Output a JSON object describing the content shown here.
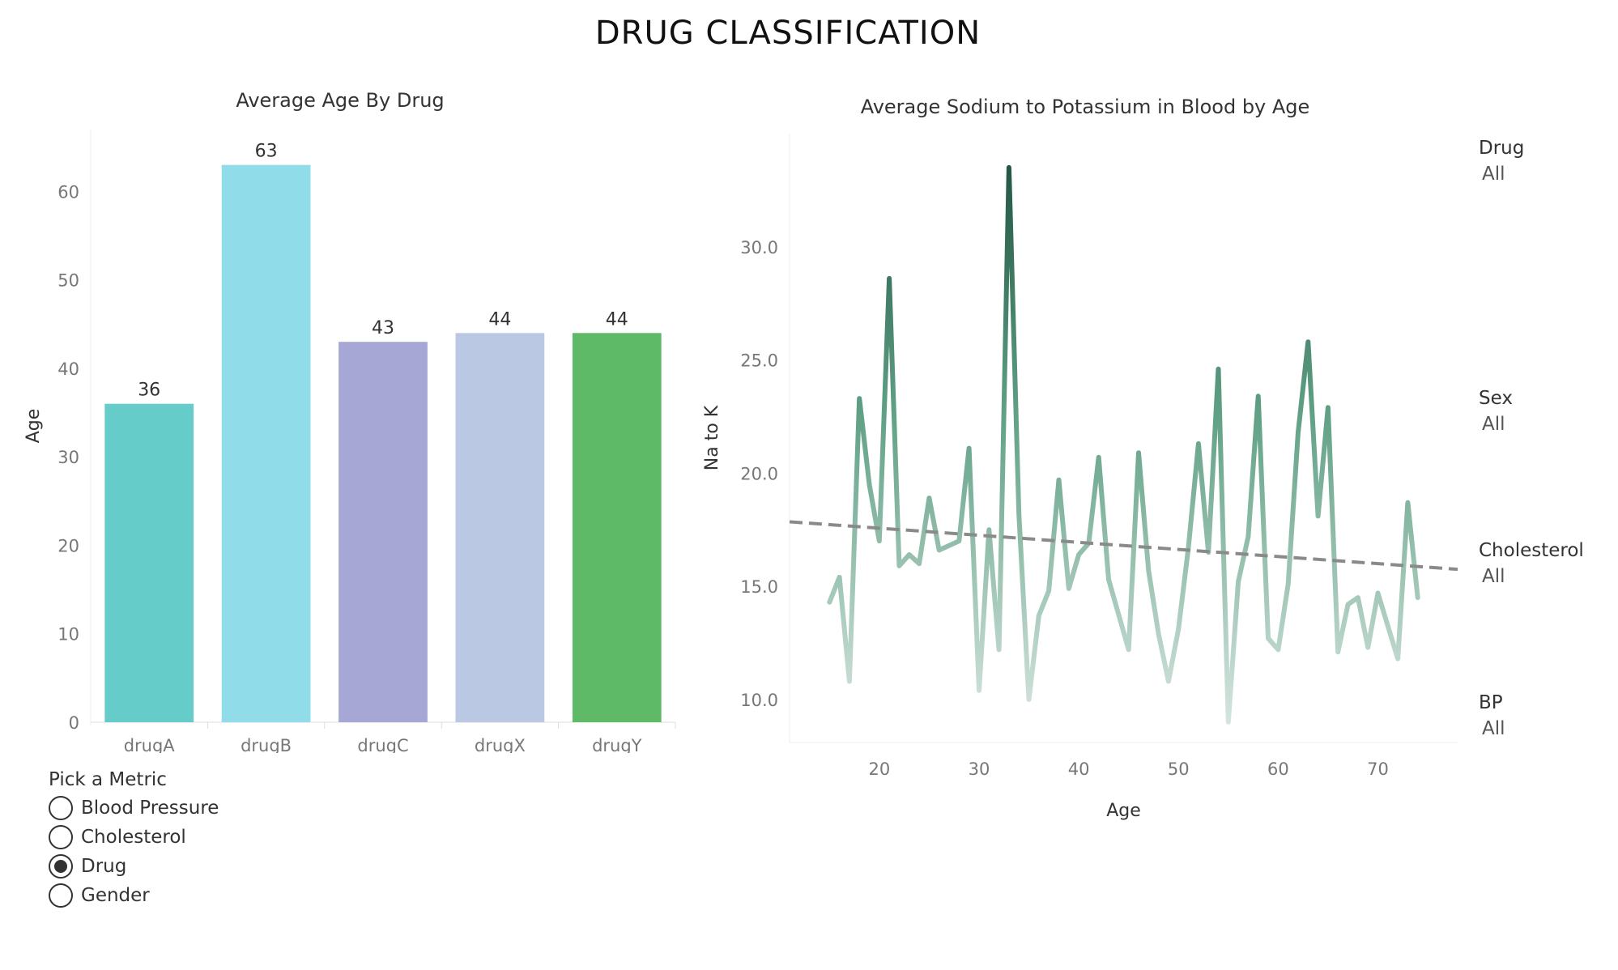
{
  "dashboard_title": "DRUG CLASSIFICATION",
  "bar_chart": {
    "title": "Average Age By Drug",
    "ylabel": "Age",
    "yticks": [
      "0",
      "10",
      "20",
      "30",
      "40",
      "50",
      "60"
    ]
  },
  "line_chart": {
    "title": "Average Sodium to Potassium in Blood by Age",
    "ylabel": "Na to K",
    "xlabel": "Age",
    "yticks": [
      "10.0",
      "15.0",
      "20.0",
      "25.0",
      "30.0"
    ],
    "xticks": [
      "20",
      "30",
      "40",
      "50",
      "60",
      "70"
    ]
  },
  "metric_picker": {
    "title": "Pick a Metric",
    "options": [
      "Blood Pressure",
      "Cholesterol",
      "Drug",
      "Gender"
    ],
    "selected": "Drug"
  },
  "filters": [
    {
      "name": "Drug",
      "value": "All"
    },
    {
      "name": "Sex",
      "value": "All"
    },
    {
      "name": "Cholesterol",
      "value": "All"
    },
    {
      "name": "BP",
      "value": "All"
    }
  ],
  "colors": {
    "drugA": "#66CCCA",
    "drugB": "#91DCE9",
    "drugC": "#A6A7D5",
    "drugX": "#BAC8E3",
    "drugY": "#5FBA67",
    "line_dark": "#1B4D3B",
    "line_light": "#DCE9E3",
    "trend": "#8A8A8A"
  },
  "chart_data": [
    {
      "type": "bar",
      "title": "Average Age By Drug",
      "xlabel": "",
      "ylabel": "Age",
      "categories": [
        "drugA",
        "drugB",
        "drugC",
        "drugX",
        "drugY"
      ],
      "values": [
        36,
        63,
        43,
        44,
        44
      ],
      "value_labels": [
        "36",
        "63",
        "43",
        "44",
        "44"
      ],
      "ylim": [
        0,
        67
      ],
      "grid": false,
      "legend": "none"
    },
    {
      "type": "line",
      "title": "Average Sodium to Potassium in Blood by Age",
      "xlabel": "Age",
      "ylabel": "Na to K",
      "xlim": [
        11,
        78
      ],
      "ylim": [
        8.1,
        35
      ],
      "grid": false,
      "legend": "none",
      "color_encoding": "sequential green by value",
      "series": [
        {
          "x": [
            15,
            16,
            17,
            18,
            19,
            20,
            21,
            22,
            23,
            24,
            25,
            26,
            28,
            29,
            30,
            31,
            32,
            33,
            34,
            35,
            36,
            37,
            38,
            39,
            40,
            41,
            42,
            43,
            45,
            46,
            47,
            48,
            49,
            50,
            51,
            52,
            53,
            54,
            55,
            56,
            57,
            58,
            59,
            60,
            61,
            62,
            63,
            64,
            65,
            66,
            67,
            68,
            69,
            70,
            72,
            73,
            74
          ],
          "y": [
            14.3,
            15.4,
            10.8,
            23.3,
            19.5,
            17.0,
            28.6,
            15.9,
            16.4,
            16.0,
            18.9,
            16.6,
            17.0,
            21.1,
            10.4,
            17.5,
            12.2,
            33.5,
            18.2,
            10.0,
            13.7,
            14.8,
            19.7,
            14.9,
            16.4,
            16.9,
            20.7,
            15.3,
            12.2,
            20.9,
            15.7,
            12.9,
            10.8,
            13.1,
            16.7,
            21.3,
            16.5,
            24.6,
            9.0,
            15.2,
            17.2,
            23.4,
            12.7,
            12.2,
            15.1,
            21.8,
            25.8,
            18.1,
            22.9,
            12.1,
            14.2,
            14.5,
            12.3,
            14.7,
            11.8,
            18.7,
            14.5
          ]
        }
      ],
      "trend_line": {
        "x": [
          11,
          78
        ],
        "y": [
          17.85,
          15.75
        ]
      }
    }
  ]
}
